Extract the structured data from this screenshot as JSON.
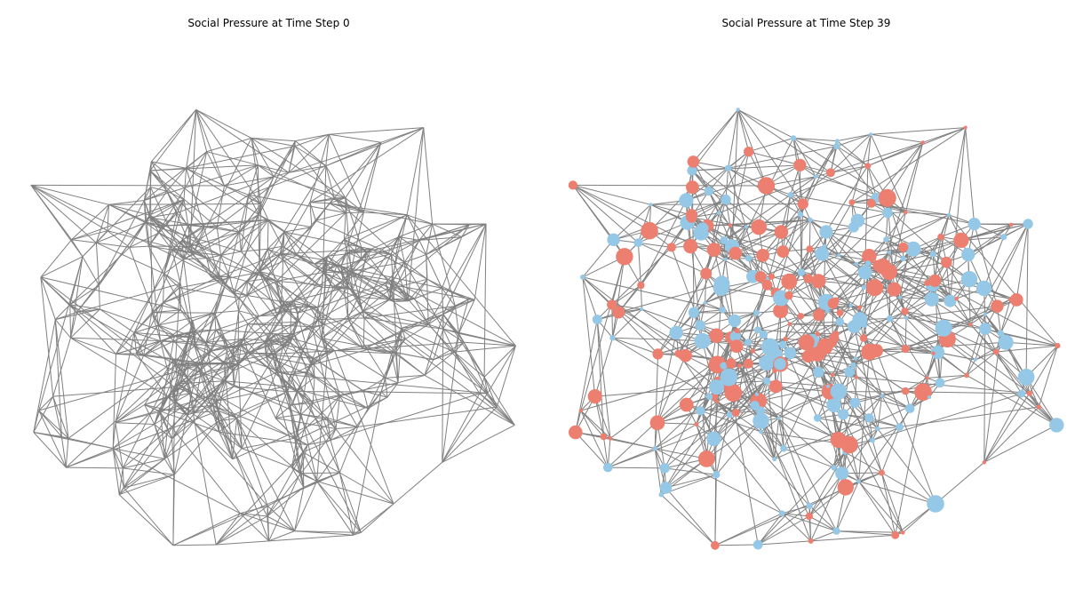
{
  "colors": {
    "edge": "#808080",
    "node_positive": "#ec7f6f",
    "node_negative": "#95c8e6",
    "background": "#ffffff"
  },
  "panels": [
    {
      "title": "Social Pressure at Time Step 0",
      "show_nodes": false
    },
    {
      "title": "Social Pressure at Time Step 39",
      "show_nodes": true
    }
  ]
}
